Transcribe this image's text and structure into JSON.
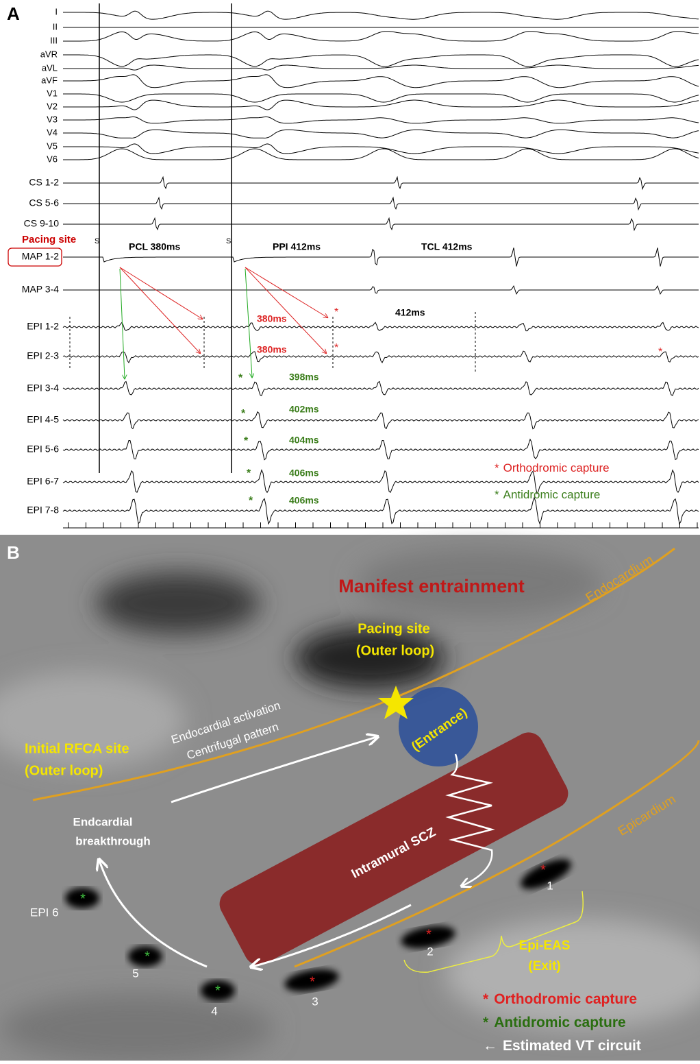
{
  "panel_a": {
    "label": "A",
    "channels": [
      "I",
      "II",
      "III",
      "aVR",
      "aVL",
      "aVF",
      "V1",
      "V2",
      "V3",
      "V4",
      "V5",
      "V6",
      "CS 1-2",
      "CS 5-6",
      "CS 9-10",
      "MAP 1-2",
      "MAP 3-4",
      "EPI 1-2",
      "EPI 2-3",
      "EPI 3-4",
      "EPI 4-5",
      "EPI 5-6",
      "EPI 6-7",
      "EPI 7-8"
    ],
    "pacing_site": "Pacing site",
    "stim": [
      "S",
      "S"
    ],
    "pcl": "PCL 380ms",
    "ppi": "PPI 412ms",
    "tcl": "TCL 412ms",
    "interval": "412ms",
    "orthodromic_intervals": [
      "380ms",
      "380ms"
    ],
    "antidromic_intervals": [
      "398ms",
      "402ms",
      "404ms",
      "406ms",
      "406ms"
    ],
    "orthodromic_markers": [
      "*",
      "*",
      "*"
    ],
    "antidromic_markers": [
      "*",
      "*",
      "*",
      "*",
      "*"
    ],
    "legend": [
      {
        "marker": "*",
        "label": "Orthodromic capture"
      },
      {
        "marker": "*",
        "label": "Antidromic capture"
      }
    ]
  },
  "panel_b": {
    "label": "B",
    "title": "Manifest entrainment",
    "endocardium": "Endocardium",
    "epicardium": "Epicardium",
    "pacing_site": [
      "Pacing site",
      "(Outer loop)"
    ],
    "entrance": "(Entrance)",
    "rfca_site": [
      "Initial RFCA site",
      "(Outer loop)"
    ],
    "activation": [
      "Endocardial activation",
      "Centrifugal pattern"
    ],
    "breakthrough": [
      "Endcardial",
      "breakthrough"
    ],
    "scz": "Intramural SCZ",
    "exit": [
      "Epi-EAS",
      "(Exit)"
    ],
    "epi6": "EPI 6",
    "sites": [
      "1",
      "2",
      "3",
      "4",
      "5"
    ],
    "orthodromic_markers": [
      "*",
      "*",
      "*"
    ],
    "antidromic_markers": [
      "*",
      "*",
      "*"
    ],
    "legend": [
      {
        "marker": "*",
        "label": "Orthodromic  capture"
      },
      {
        "marker": "*",
        "label": "Antidromic capture"
      },
      {
        "marker": "←",
        "label": "Estimated VT circuit"
      }
    ]
  }
}
